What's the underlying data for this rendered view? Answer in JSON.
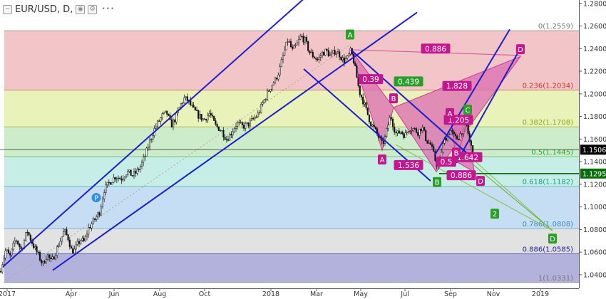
{
  "header": {
    "symbol": "EUR/USD, D,",
    "dots": "•••",
    "icons": [
      "collapse-icon",
      "eye-icon",
      "settings-icon"
    ]
  },
  "chart_data": {
    "type": "candlestick",
    "title": "EUR/USD, D,",
    "ylim": [
      1.028,
      1.283
    ],
    "y_ticks": [
      "1.2800",
      "1.2600",
      "1.2400",
      "1.2200",
      "1.2000",
      "1.1800",
      "1.1600",
      "1.1400",
      "1.1200",
      "1.1000",
      "1.0800",
      "1.0600",
      "1.0400"
    ],
    "x_ticks": [
      "2017",
      "Apr",
      "Jun",
      "Aug",
      "Oct",
      "2018",
      "Mar",
      "May",
      "Jul",
      "Sep",
      "Nov",
      "2019"
    ],
    "price_badges": [
      {
        "label": "1.1506",
        "value": 1.1506,
        "color": "#000000"
      },
      {
        "label": "1.1295",
        "value": 1.1295,
        "color": "#0b6b0b"
      }
    ],
    "fib_levels": [
      {
        "label": "0(1.2559)",
        "value": 1.2559,
        "text_color": "#777777",
        "fill": null
      },
      {
        "label": "0.236(1.2034)",
        "value": 1.2034,
        "text_color": "#c0392b",
        "fill": "#f2c6c8"
      },
      {
        "label": "0.382(1.1708)",
        "value": 1.1708,
        "text_color": "#8aa51c",
        "fill": "#e9f2b9"
      },
      {
        "label": "0.5(1.1445)",
        "value": 1.1445,
        "text_color": "#27a32e",
        "fill": "#cdedca"
      },
      {
        "label": "0.618(1.1182)",
        "value": 1.1182,
        "text_color": "#13a08e",
        "fill": "#c7eee6"
      },
      {
        "label": "0.786(1.0808)",
        "value": 1.0808,
        "text_color": "#3b88c8",
        "fill": "#c5def3"
      },
      {
        "label": "0.886(1.0585)",
        "value": 1.0585,
        "text_color": "#1c1c8a",
        "fill": "#e2e2e2"
      },
      {
        "label": "1(1.0331)",
        "value": 1.0331,
        "text_color": "#777777",
        "fill": "#b3b2dc"
      }
    ],
    "price_path": [
      [
        0,
        1.043
      ],
      [
        8,
        1.062
      ],
      [
        14,
        1.056
      ],
      [
        22,
        1.072
      ],
      [
        30,
        1.062
      ],
      [
        38,
        1.079
      ],
      [
        46,
        1.067
      ],
      [
        54,
        1.057
      ],
      [
        60,
        1.049
      ],
      [
        66,
        1.058
      ],
      [
        72,
        1.051
      ],
      [
        80,
        1.063
      ],
      [
        90,
        1.079
      ],
      [
        96,
        1.072
      ],
      [
        100,
        1.062
      ],
      [
        104,
        1.061
      ],
      [
        108,
        1.066
      ],
      [
        113,
        1.071
      ],
      [
        118,
        1.069
      ],
      [
        124,
        1.081
      ],
      [
        132,
        1.088
      ],
      [
        140,
        1.096
      ],
      [
        146,
        1.115
      ],
      [
        154,
        1.122
      ],
      [
        162,
        1.127
      ],
      [
        170,
        1.125
      ],
      [
        178,
        1.131
      ],
      [
        186,
        1.128
      ],
      [
        192,
        1.131
      ],
      [
        198,
        1.137
      ],
      [
        204,
        1.146
      ],
      [
        210,
        1.158
      ],
      [
        216,
        1.168
      ],
      [
        222,
        1.175
      ],
      [
        228,
        1.181
      ],
      [
        234,
        1.183
      ],
      [
        240,
        1.172
      ],
      [
        246,
        1.178
      ],
      [
        252,
        1.188
      ],
      [
        258,
        1.196
      ],
      [
        264,
        1.194
      ],
      [
        270,
        1.187
      ],
      [
        278,
        1.181
      ],
      [
        286,
        1.177
      ],
      [
        294,
        1.183
      ],
      [
        302,
        1.172
      ],
      [
        310,
        1.168
      ],
      [
        318,
        1.16
      ],
      [
        324,
        1.165
      ],
      [
        332,
        1.174
      ],
      [
        340,
        1.171
      ],
      [
        348,
        1.173
      ],
      [
        356,
        1.178
      ],
      [
        362,
        1.182
      ],
      [
        368,
        1.191
      ],
      [
        374,
        1.199
      ],
      [
        380,
        1.207
      ],
      [
        386,
        1.212
      ],
      [
        392,
        1.221
      ],
      [
        398,
        1.236
      ],
      [
        404,
        1.248
      ],
      [
        410,
        1.238
      ],
      [
        416,
        1.243
      ],
      [
        422,
        1.251
      ],
      [
        428,
        1.247
      ],
      [
        434,
        1.237
      ],
      [
        440,
        1.233
      ],
      [
        446,
        1.23
      ],
      [
        452,
        1.236
      ],
      [
        458,
        1.238
      ],
      [
        464,
        1.233
      ],
      [
        470,
        1.238
      ],
      [
        476,
        1.235
      ],
      [
        482,
        1.229
      ],
      [
        488,
        1.232
      ],
      [
        492,
        1.238
      ],
      [
        496,
        1.229
      ],
      [
        500,
        1.216
      ],
      [
        504,
        1.202
      ],
      [
        508,
        1.196
      ],
      [
        514,
        1.185
      ],
      [
        520,
        1.174
      ],
      [
        526,
        1.168
      ],
      [
        532,
        1.161
      ],
      [
        536,
        1.155
      ],
      [
        540,
        1.161
      ],
      [
        544,
        1.172
      ],
      [
        548,
        1.181
      ],
      [
        552,
        1.171
      ],
      [
        556,
        1.164
      ],
      [
        562,
        1.167
      ],
      [
        568,
        1.163
      ],
      [
        574,
        1.17
      ],
      [
        580,
        1.169
      ],
      [
        586,
        1.166
      ],
      [
        592,
        1.171
      ],
      [
        598,
        1.159
      ],
      [
        604,
        1.155
      ],
      [
        608,
        1.147
      ],
      [
        612,
        1.138
      ],
      [
        616,
        1.138
      ],
      [
        620,
        1.152
      ],
      [
        624,
        1.16
      ],
      [
        628,
        1.164
      ],
      [
        632,
        1.168
      ],
      [
        636,
        1.163
      ],
      [
        640,
        1.16
      ],
      [
        644,
        1.162
      ],
      [
        648,
        1.168
      ],
      [
        652,
        1.178
      ],
      [
        656,
        1.167
      ],
      [
        660,
        1.154
      ],
      [
        664,
        1.15
      ]
    ],
    "channels": [
      {
        "name": "upper-left-a",
        "from": [
          4,
          1.047
        ],
        "to": [
          426,
          1.284
        ]
      },
      {
        "name": "upper-left-b",
        "from": [
          74,
          1.044
        ],
        "to": [
          585,
          1.272
        ]
      },
      {
        "name": "down-a",
        "from": [
          426,
          1.222
        ],
        "to": [
          604,
          1.123
        ]
      },
      {
        "name": "down-b",
        "from": [
          492,
          1.239
        ],
        "to": [
          665,
          1.142
        ]
      },
      {
        "name": "up-a",
        "from": [
          610,
          1.146
        ],
        "to": [
          715,
          1.257
        ]
      },
      {
        "name": "up-b",
        "from": [
          640,
          1.139
        ],
        "to": [
          727,
          1.237
        ]
      }
    ],
    "diagonals": [
      {
        "name": "dotted-trend",
        "from": [
          5,
          1.033
        ],
        "to": [
          492,
          1.244
        ],
        "color": "#b9a2a2",
        "dash": true
      },
      {
        "name": "green-1",
        "from": [
          492,
          1.239
        ],
        "to": [
          775,
          1.079
        ],
        "color": "#8bc34a",
        "dash": false
      },
      {
        "name": "green-2",
        "from": [
          630,
          1.155
        ],
        "to": [
          775,
          1.079
        ],
        "color": "#6fb047",
        "dash": false
      },
      {
        "name": "green-3",
        "from": [
          555,
          1.155
        ],
        "to": [
          775,
          1.079
        ],
        "color": "#8bc34a",
        "dash": false
      },
      {
        "name": "pink-xd",
        "from": [
          492,
          1.239
        ],
        "to": [
          730,
          1.234
        ],
        "color": "#d658a5",
        "dash": false
      }
    ],
    "hline_1295": {
      "value": 1.1295,
      "from_x": 616,
      "to_x": 812,
      "color": "#0b6b0b"
    },
    "hline_1506": {
      "value": 1.1506,
      "from_x": 0,
      "to_x": 812,
      "color": "#333333"
    },
    "patterns": [
      {
        "name": "harmonic-big",
        "points": [
          [
            492,
            1.239
          ],
          [
            536,
            1.15
          ],
          [
            552,
            1.188
          ],
          [
            612,
            1.131
          ],
          [
            730,
            1.233
          ]
        ],
        "triangles": [
          [
            0,
            1,
            2
          ],
          [
            2,
            3,
            4
          ]
        ],
        "fill": "#de6fb4",
        "stroke": "#c9408c"
      },
      {
        "name": "harmonic-small",
        "points": [
          [
            632,
            1.18
          ],
          [
            640,
            1.14
          ],
          [
            656,
            1.178
          ],
          [
            665,
            1.131
          ]
        ],
        "triangles": [
          [
            0,
            1,
            2
          ],
          [
            1,
            2,
            3
          ]
        ],
        "fill": "#de6fb4",
        "stroke": "#c9408c"
      }
    ],
    "ratios": [
      {
        "text": "0.886",
        "x": 611,
        "y": 1.24,
        "color": "#c2188f"
      },
      {
        "text": "0.39",
        "x": 520,
        "y": 1.213,
        "color": "#c2188f"
      },
      {
        "text": "0.439",
        "x": 573,
        "y": 1.211,
        "color": "#28a028"
      },
      {
        "text": "1.828",
        "x": 641,
        "y": 1.207,
        "color": "#c2188f"
      },
      {
        "text": "1.205",
        "x": 643,
        "y": 1.177,
        "color": "#c2188f"
      },
      {
        "text": "1.536",
        "x": 573,
        "y": 1.137,
        "color": "#c2188f"
      },
      {
        "text": "0.5",
        "x": 626,
        "y": 1.14,
        "color": "#c2188f"
      },
      {
        "text": "1.642",
        "x": 656,
        "y": 1.144,
        "color": "#c2188f"
      },
      {
        "text": "0.886",
        "x": 647,
        "y": 1.128,
        "color": "#c2188f"
      }
    ],
    "points": [
      {
        "text": "A",
        "x": 491,
        "y": 1.2525,
        "color": "#28a028"
      },
      {
        "text": "D",
        "x": 730,
        "y": 1.2395,
        "color": "#c2188f"
      },
      {
        "text": "B",
        "x": 552,
        "y": 1.196,
        "color": "#c2188f"
      },
      {
        "text": "A",
        "x": 631,
        "y": 1.183,
        "color": "#c2188f"
      },
      {
        "text": "C",
        "x": 656,
        "y": 1.186,
        "color": "#28a028"
      },
      {
        "text": "B",
        "x": 640,
        "y": 1.148,
        "color": "#c2188f"
      },
      {
        "text": "A",
        "x": 536,
        "y": 1.142,
        "color": "#c2188f"
      },
      {
        "text": "D",
        "x": 674,
        "y": 1.123,
        "color": "#c2188f"
      },
      {
        "text": "B",
        "x": 613,
        "y": 1.122,
        "color": "#28a028"
      },
      {
        "text": "2",
        "x": 694,
        "y": 1.094,
        "color": "#28a028"
      },
      {
        "text": "D",
        "x": 775,
        "y": 1.072,
        "color": "#28a028"
      },
      {
        "text": "P",
        "x": 135,
        "y": 1.1082,
        "color": "#2f8ee5",
        "shape": "circle"
      }
    ]
  }
}
